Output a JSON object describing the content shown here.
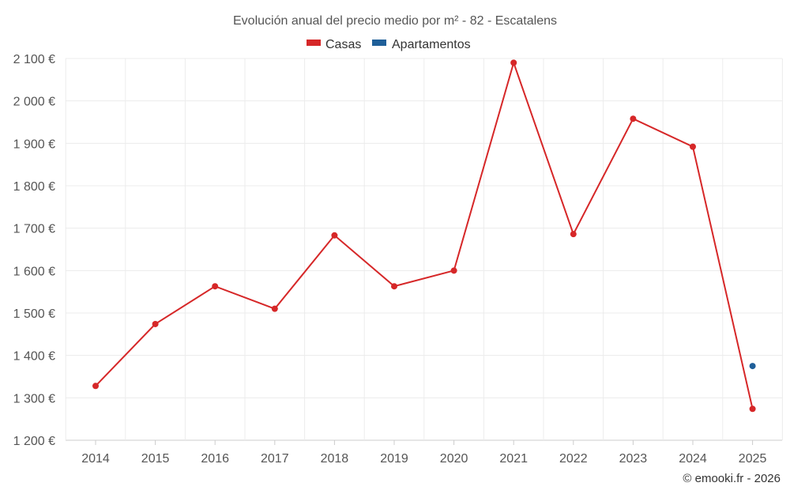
{
  "chart_data": {
    "type": "line",
    "title": "Evolución anual del precio medio por m² - 82 - Escatalens",
    "categories": [
      "2014",
      "2015",
      "2016",
      "2017",
      "2018",
      "2019",
      "2020",
      "2021",
      "2022",
      "2023",
      "2024",
      "2025"
    ],
    "series": [
      {
        "name": "Casas",
        "color": "#d62728",
        "values": [
          1328,
          1474,
          1563,
          1510,
          1683,
          1563,
          1600,
          2090,
          1686,
          1958,
          1892,
          1274
        ]
      },
      {
        "name": "Apartamentos",
        "color": "#1f5f99",
        "values": [
          null,
          null,
          null,
          null,
          null,
          null,
          null,
          null,
          null,
          null,
          null,
          1375
        ]
      }
    ],
    "ylim": [
      1200,
      2100
    ],
    "yticks": [
      1200,
      1300,
      1400,
      1500,
      1600,
      1700,
      1800,
      1900,
      2000,
      2100
    ],
    "ytick_labels": [
      "1 200 €",
      "1 300 €",
      "1 400 €",
      "1 500 €",
      "1 600 €",
      "1 700 €",
      "1 800 €",
      "1 900 €",
      "2 000 €",
      "2 100 €"
    ],
    "grid": true,
    "legend_position": "top-center",
    "credit": "© emooki.fr - 2026"
  }
}
